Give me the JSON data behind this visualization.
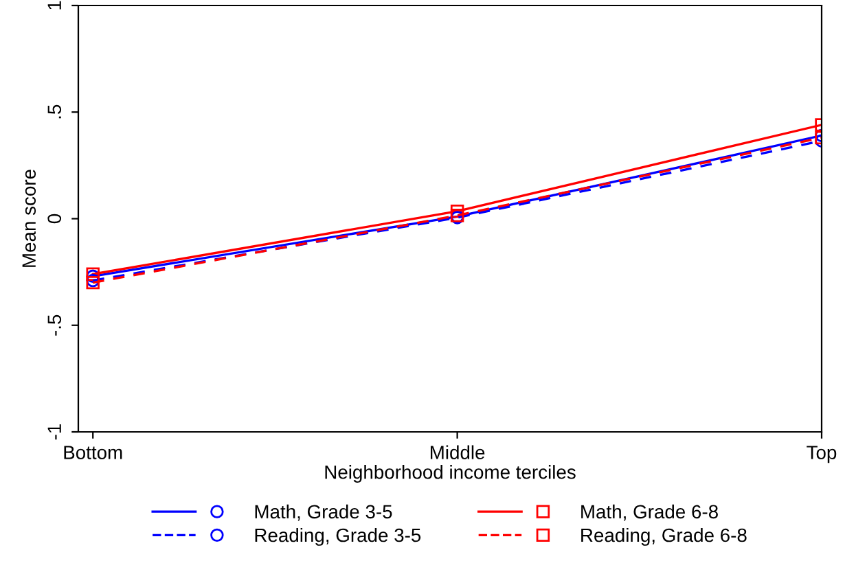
{
  "chart_data": {
    "type": "line",
    "xlabel": "Neighborhood income terciles",
    "ylabel": "Mean score",
    "categories": [
      "Bottom",
      "Middle",
      "Top"
    ],
    "ylim": [
      -1,
      1
    ],
    "yticks": [
      {
        "value": -1,
        "label": "-1"
      },
      {
        "value": -0.5,
        "label": "-.5"
      },
      0,
      {
        "value": 0.5,
        "label": ".5"
      },
      1
    ],
    "grid": false,
    "legend": "bottom",
    "series": [
      {
        "name": "Math, Grade 3-5",
        "color": "#0000ff",
        "values": [
          -0.27,
          0.01,
          0.39
        ],
        "marker": "circle",
        "line_style": "solid"
      },
      {
        "name": "Math, Grade 6-8",
        "color": "#ff0000",
        "values": [
          -0.26,
          0.035,
          0.44
        ],
        "marker": "square",
        "line_style": "solid"
      },
      {
        "name": "Reading, Grade 3-5",
        "color": "#0000ff",
        "values": [
          -0.29,
          0.005,
          0.365
        ],
        "marker": "circle",
        "line_style": "dashed"
      },
      {
        "name": "Reading, Grade 6-8",
        "color": "#ff0000",
        "values": [
          -0.3,
          0.015,
          0.38
        ],
        "marker": "square",
        "line_style": "dashed"
      }
    ]
  }
}
